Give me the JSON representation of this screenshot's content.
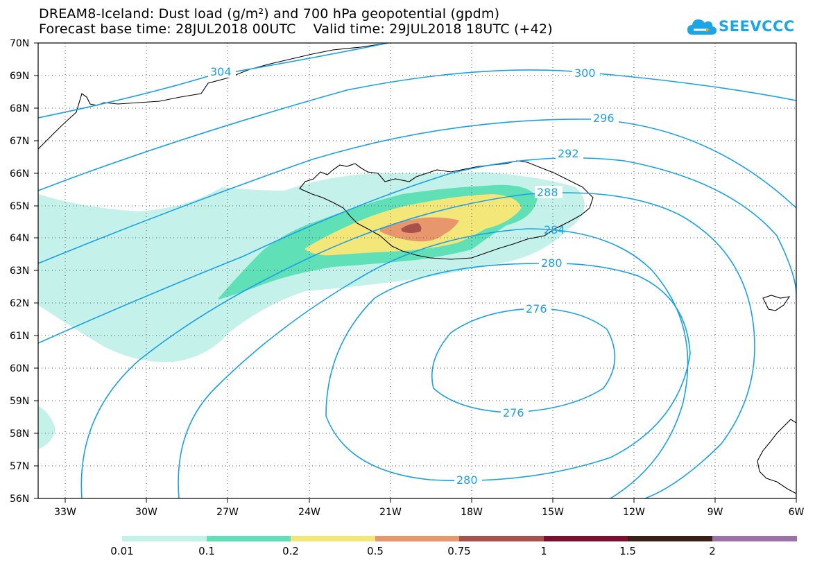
{
  "header": {
    "title_line1": "DREAM8-Iceland: Dust load (g/m²) and 700 hPa geopotential (gpdm)",
    "title_line2": "Forecast base time: 28JUL2018 00UTC    Valid time: 29JUL2018 18UTC (+42)"
  },
  "logo": {
    "text": "SEEVCCC",
    "color": "#1aa6e6"
  },
  "axes": {
    "lat_labels": [
      "70N",
      "69N",
      "68N",
      "67N",
      "66N",
      "65N",
      "64N",
      "63N",
      "62N",
      "61N",
      "60N",
      "59N",
      "58N",
      "57N",
      "56N"
    ],
    "lon_labels": [
      "33W",
      "30W",
      "27W",
      "24W",
      "21W",
      "18W",
      "15W",
      "12W",
      "9W",
      "6W"
    ]
  },
  "contour_labels": [
    "304",
    "300",
    "296",
    "292",
    "288",
    "284",
    "280",
    "276",
    "276",
    "280"
  ],
  "colorbar": {
    "labels": [
      "0.01",
      "0.1",
      "0.2",
      "0.5",
      "0.75",
      "1",
      "1.5",
      "2"
    ],
    "colors": [
      "#c4f1e9",
      "#5fe0b7",
      "#f4e77a",
      "#e8976d",
      "#a8514a",
      "#7a0f2e",
      "#3a1f17",
      "#9b71a8"
    ]
  },
  "colors": {
    "contour": "#1aa0e6",
    "dust_level1": "#c4f1e9",
    "dust_level2": "#5fe0b7",
    "dust_level3": "#f4e77a",
    "dust_level4": "#e8976d",
    "dust_level5": "#a8514a"
  }
}
